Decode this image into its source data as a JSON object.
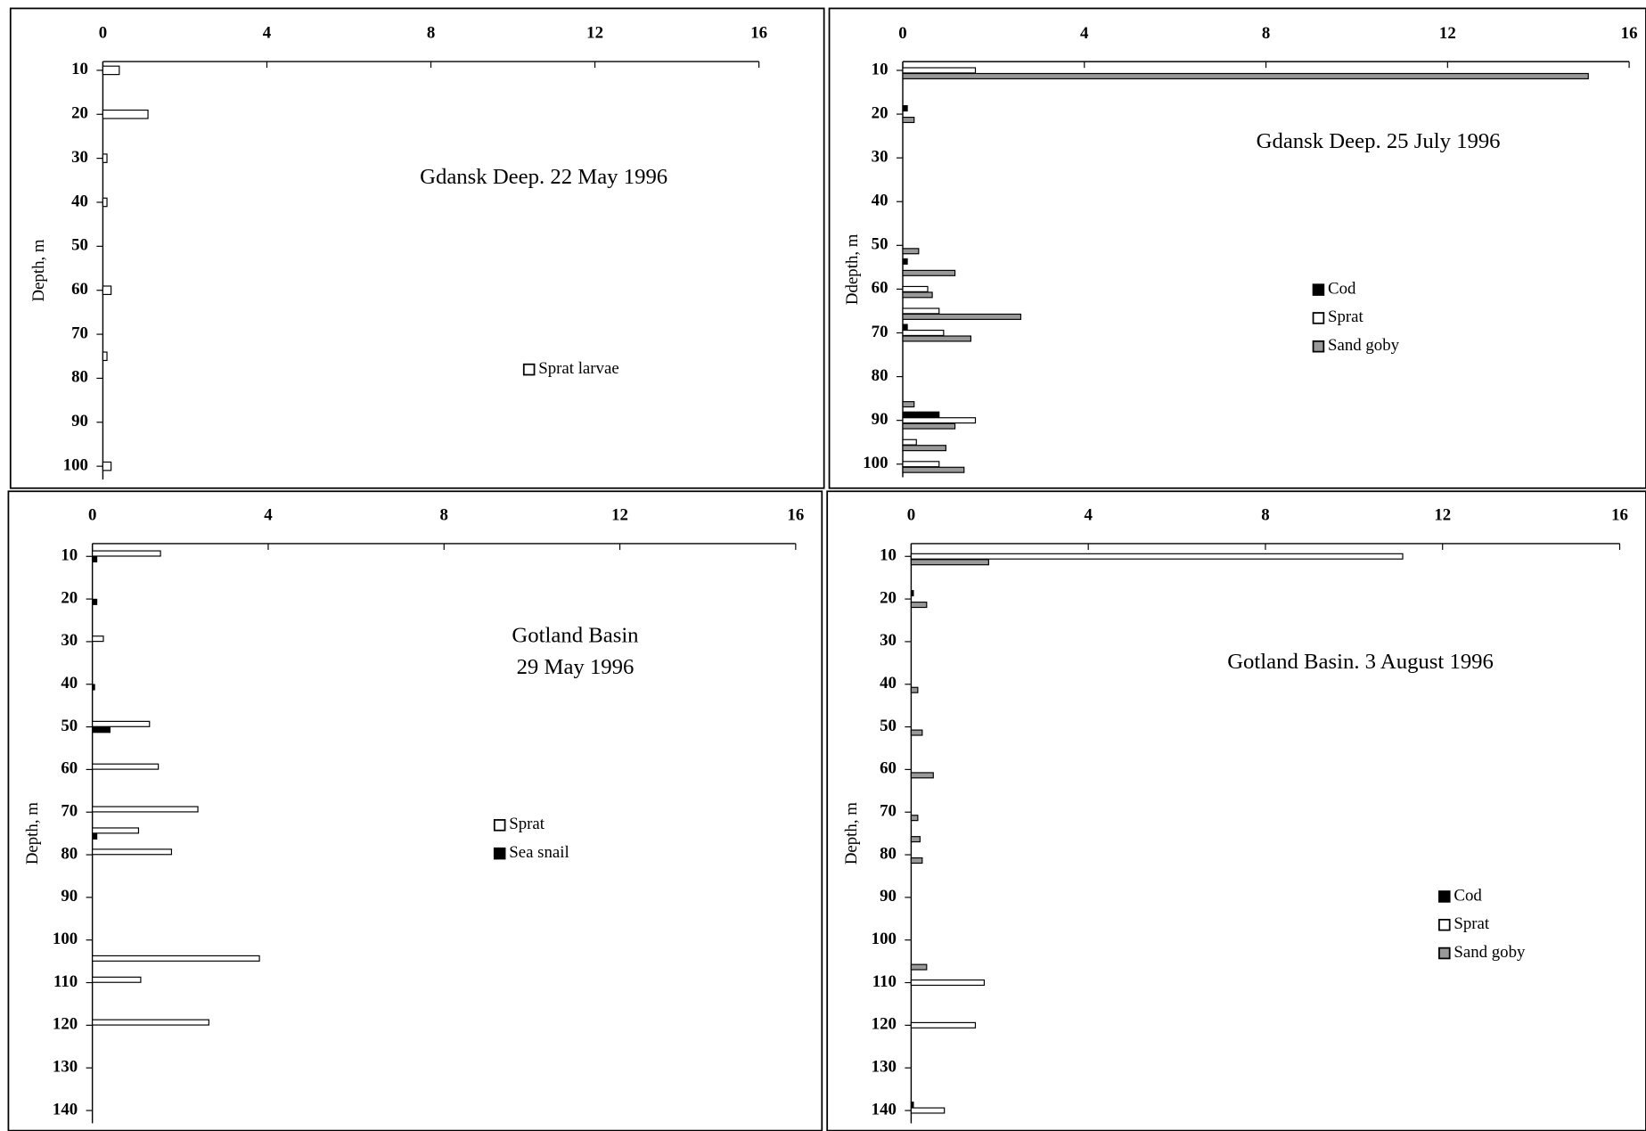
{
  "chart_data": [
    {
      "type": "hbar",
      "title": [
        "Gdansk Deep. 22 May 1996"
      ],
      "ylabel": "Depth, m",
      "xlim": [
        0,
        16
      ],
      "xticks": [
        0,
        4,
        8,
        12,
        16
      ],
      "ylim": [
        8,
        103
      ],
      "yticks": [
        10,
        20,
        30,
        40,
        50,
        60,
        70,
        80,
        90,
        100
      ],
      "y": [
        10,
        20,
        30,
        40,
        60,
        75,
        100
      ],
      "series": [
        {
          "name": "Sprat larvae",
          "color": "#ffffff",
          "values": [
            0.4,
            1.1,
            0.1,
            0.1,
            0.2,
            0.1,
            0.2
          ]
        }
      ]
    },
    {
      "type": "hbar",
      "title": [
        "Gdansk Deep. 25 July 1996"
      ],
      "ylabel": "Ddepth, m",
      "xlim": [
        0,
        16
      ],
      "xticks": [
        0,
        4,
        8,
        12,
        16
      ],
      "ylim": [
        8,
        103
      ],
      "yticks": [
        10,
        20,
        30,
        40,
        50,
        60,
        70,
        80,
        90,
        100
      ],
      "y": [
        10,
        20,
        50,
        55,
        60,
        65,
        70,
        85,
        90,
        95,
        100
      ],
      "series": [
        {
          "name": "Cod",
          "color": "#000000",
          "values": [
            null,
            0.1,
            null,
            0.1,
            null,
            null,
            0.1,
            null,
            0.8,
            null,
            null
          ]
        },
        {
          "name": "Sprat",
          "color": "#ffffff",
          "values": [
            1.6,
            null,
            null,
            null,
            0.55,
            0.8,
            0.9,
            null,
            1.6,
            0.3,
            0.8
          ]
        },
        {
          "name": "Sand goby",
          "color": "#999999",
          "values": [
            15.1,
            0.25,
            0.35,
            1.15,
            0.65,
            2.6,
            1.5,
            0.25,
            1.15,
            0.95,
            1.35
          ]
        }
      ]
    },
    {
      "type": "hbar",
      "title": [
        "Gotland Basin",
        "29 May 1996"
      ],
      "ylabel": "Depth, m",
      "xlim": [
        0,
        16
      ],
      "xticks": [
        0,
        4,
        8,
        12,
        16
      ],
      "ylim": [
        7,
        143
      ],
      "yticks": [
        10,
        20,
        30,
        40,
        50,
        60,
        70,
        80,
        90,
        100,
        110,
        120,
        130,
        140
      ],
      "y": [
        10,
        20,
        30,
        40,
        50,
        60,
        70,
        75,
        80,
        105,
        110,
        120
      ],
      "series": [
        {
          "name": "Sprat",
          "color": "#ffffff",
          "values": [
            1.55,
            null,
            0.25,
            null,
            1.3,
            1.5,
            2.4,
            1.05,
            1.8,
            3.8,
            1.1,
            2.65
          ]
        },
        {
          "name": "Sea snail",
          "color": "#000000",
          "values": [
            0.1,
            0.1,
            null,
            0.05,
            0.4,
            null,
            null,
            0.1,
            null,
            null,
            null,
            null
          ]
        }
      ]
    },
    {
      "type": "hbar",
      "title": [
        "Gotland Basin. 3 August 1996"
      ],
      "ylabel": "Depth, m",
      "xlim": [
        0,
        16
      ],
      "xticks": [
        0,
        4,
        8,
        12,
        16
      ],
      "ylim": [
        7,
        143
      ],
      "yticks": [
        10,
        20,
        30,
        40,
        50,
        60,
        70,
        80,
        90,
        100,
        110,
        120,
        130,
        140
      ],
      "y": [
        10,
        20,
        40,
        50,
        60,
        70,
        75,
        80,
        105,
        110,
        120,
        140
      ],
      "series": [
        {
          "name": "Cod",
          "color": "#000000",
          "values": [
            null,
            0.05,
            null,
            null,
            null,
            null,
            null,
            null,
            null,
            null,
            null,
            0.05
          ]
        },
        {
          "name": "Sprat",
          "color": "#ffffff",
          "values": [
            11.1,
            null,
            null,
            null,
            null,
            null,
            null,
            null,
            null,
            1.65,
            1.45,
            0.75
          ]
        },
        {
          "name": "Sand goby",
          "color": "#999999",
          "values": [
            1.75,
            0.35,
            0.15,
            0.25,
            0.5,
            0.15,
            0.2,
            0.25,
            0.35,
            null,
            null,
            null
          ]
        }
      ]
    }
  ]
}
